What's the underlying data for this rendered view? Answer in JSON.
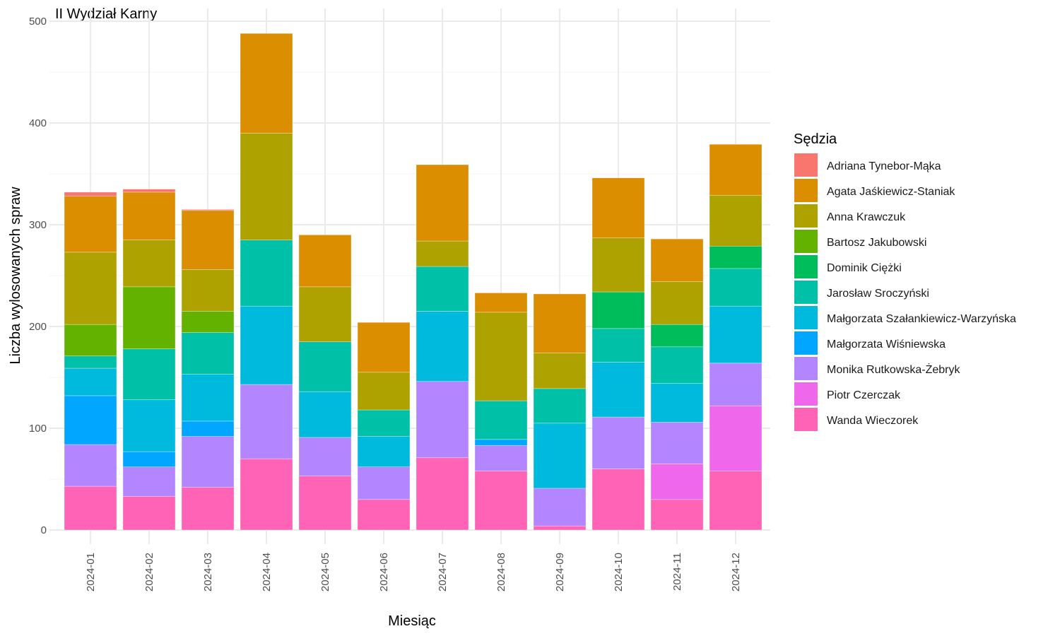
{
  "chart_data": {
    "type": "bar",
    "stacked": true,
    "title": "II Wydział Karny",
    "xlabel": "Miesiąc",
    "ylabel": "Liczba wylosowanych spraw",
    "ylim": [
      0,
      500
    ],
    "y_ticks": [
      0,
      100,
      200,
      300,
      400,
      500
    ],
    "legend_title": "Sędzia",
    "legend_position": "right",
    "grid": true,
    "categories": [
      "2024-01",
      "2024-02",
      "2024-03",
      "2024-04",
      "2024-05",
      "2024-06",
      "2024-07",
      "2024-08",
      "2024-09",
      "2024-10",
      "2024-11",
      "2024-12"
    ],
    "series": [
      {
        "name": "Adriana Tynebor-Mąka",
        "color": "#F8766D",
        "values": [
          4,
          3,
          1,
          0,
          0,
          0,
          0,
          0,
          0,
          0,
          0,
          0
        ]
      },
      {
        "name": "Agata Jaśkiewicz-Staniak",
        "color": "#DB8E00",
        "values": [
          55,
          47,
          58,
          98,
          51,
          49,
          75,
          19,
          58,
          59,
          42,
          50
        ]
      },
      {
        "name": "Anna Krawczuk",
        "color": "#AEA200",
        "values": [
          71,
          46,
          41,
          105,
          54,
          37,
          25,
          87,
          35,
          53,
          42,
          50
        ]
      },
      {
        "name": "Bartosz Jakubowski",
        "color": "#64B200",
        "values": [
          31,
          61,
          21,
          0,
          0,
          0,
          0,
          0,
          0,
          0,
          0,
          0
        ]
      },
      {
        "name": "Dominik Ciężki",
        "color": "#00BD5C",
        "values": [
          0,
          0,
          0,
          0,
          0,
          0,
          0,
          0,
          0,
          36,
          22,
          22
        ]
      },
      {
        "name": "Jarosław Sroczyński",
        "color": "#00C1A7",
        "values": [
          12,
          50,
          41,
          65,
          49,
          26,
          44,
          38,
          34,
          33,
          36,
          37
        ]
      },
      {
        "name": "Małgorzata Szałankiewicz-Warzyńska",
        "color": "#00BADE",
        "values": [
          27,
          51,
          46,
          77,
          45,
          30,
          69,
          0,
          64,
          54,
          38,
          56
        ]
      },
      {
        "name": "Małgorzata Wiśniewska",
        "color": "#00A6FF",
        "values": [
          48,
          15,
          15,
          0,
          0,
          0,
          0,
          6,
          0,
          0,
          0,
          0
        ]
      },
      {
        "name": "Monika Rutkowska-Żebryk",
        "color": "#B385FF",
        "values": [
          41,
          29,
          50,
          73,
          38,
          32,
          75,
          25,
          37,
          51,
          41,
          42
        ]
      },
      {
        "name": "Piotr Czerczak",
        "color": "#EF67EB",
        "values": [
          0,
          0,
          0,
          0,
          0,
          0,
          0,
          0,
          0,
          0,
          35,
          64
        ]
      },
      {
        "name": "Wanda Wieczorek",
        "color": "#FF63B6",
        "values": [
          43,
          33,
          42,
          70,
          53,
          30,
          71,
          58,
          4,
          60,
          30,
          58
        ]
      }
    ]
  }
}
